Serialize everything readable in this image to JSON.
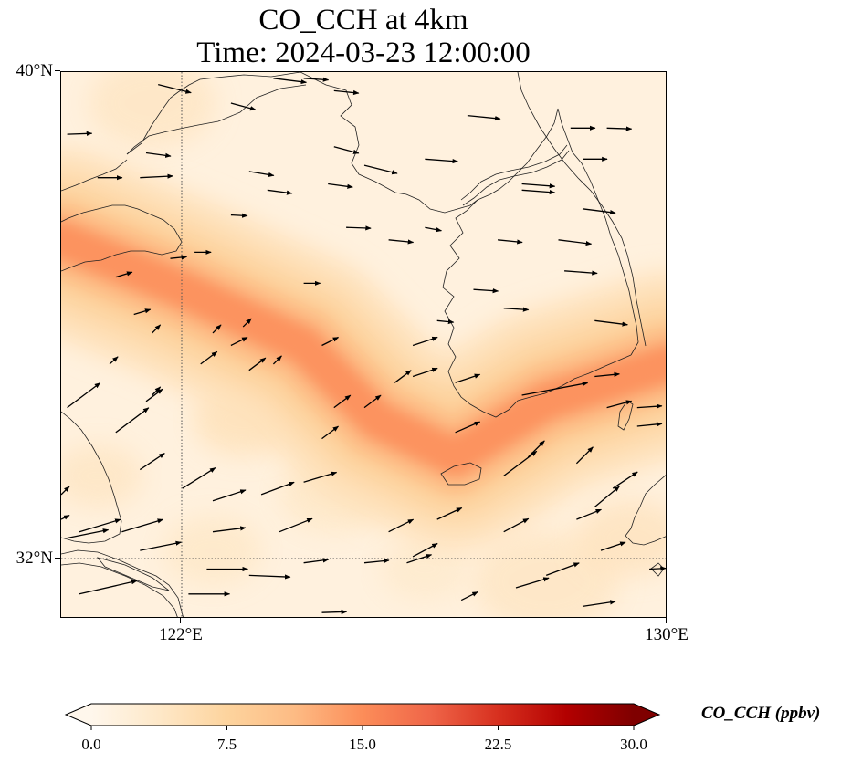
{
  "title_line1": "CO_CCH at 4km",
  "title_line2": "Time: 2024-03-23 12:00:00",
  "map": {
    "lat_range": [
      31.2,
      40.0
    ],
    "lon_range": [
      120.0,
      130.0
    ],
    "lat_ticks": [
      {
        "value": 40,
        "label": "40°N"
      },
      {
        "value": 32,
        "label": "32°N"
      }
    ],
    "lon_ticks": [
      {
        "value": 122,
        "label": "122°E"
      },
      {
        "value": 130,
        "label": "130°E"
      }
    ],
    "gridlines": [
      {
        "axis": "lon",
        "value": 122
      },
      {
        "axis": "lat",
        "value": 32
      }
    ]
  },
  "colorbar": {
    "title": "CO_CCH (ppbv)",
    "range": [
      0.0,
      30.0
    ],
    "colormap": "OrRd",
    "colors": [
      "#fff7ec",
      "#fee8c8",
      "#fdd49e",
      "#fdbb84",
      "#fc8d59",
      "#ef6548",
      "#d7301f",
      "#b30000",
      "#7f0000"
    ],
    "ticks": [
      {
        "value": 0.0,
        "label": "0.0"
      },
      {
        "value": 7.5,
        "label": "7.5"
      },
      {
        "value": 15.0,
        "label": "15.0"
      },
      {
        "value": 22.5,
        "label": "22.5"
      },
      {
        "value": 30.0,
        "label": "30.0"
      }
    ],
    "extend": "both"
  },
  "plume": {
    "peak_value": 14.5,
    "centerline": [
      [
        120.0,
        37.3
      ],
      [
        122.0,
        36.5
      ],
      [
        124.0,
        35.6
      ],
      [
        125.2,
        34.4
      ],
      [
        126.5,
        33.8
      ],
      [
        128.0,
        34.7
      ],
      [
        130.0,
        35.3
      ]
    ]
  },
  "wind_vectors": [
    {
      "lon": 120.1,
      "lat": 39.0,
      "u": 3,
      "v": 0.1
    },
    {
      "lon": 120.6,
      "lat": 38.3,
      "u": 3,
      "v": 0
    },
    {
      "lon": 121.3,
      "lat": 38.3,
      "u": 4,
      "v": 0.2
    },
    {
      "lon": 121.6,
      "lat": 39.8,
      "u": 4,
      "v": -1
    },
    {
      "lon": 121.4,
      "lat": 38.7,
      "u": 3,
      "v": -0.4
    },
    {
      "lon": 121.8,
      "lat": 37.0,
      "u": 2,
      "v": 0.2
    },
    {
      "lon": 120.9,
      "lat": 36.7,
      "u": 2,
      "v": 0.6
    },
    {
      "lon": 121.2,
      "lat": 36.1,
      "u": 2,
      "v": 0.6
    },
    {
      "lon": 120.8,
      "lat": 35.3,
      "u": 1,
      "v": 0.9
    },
    {
      "lon": 120.1,
      "lat": 34.6,
      "u": 4,
      "v": 3
    },
    {
      "lon": 121.4,
      "lat": 34.7,
      "u": 2,
      "v": 1.5
    },
    {
      "lon": 120.9,
      "lat": 34.2,
      "u": 4,
      "v": 3
    },
    {
      "lon": 121.3,
      "lat": 33.6,
      "u": 3,
      "v": 2
    },
    {
      "lon": 120.0,
      "lat": 33.2,
      "u": 1,
      "v": 1
    },
    {
      "lon": 122.0,
      "lat": 33.3,
      "u": 4,
      "v": 2.5
    },
    {
      "lon": 120.0,
      "lat": 32.8,
      "u": 1,
      "v": 0.5
    },
    {
      "lon": 120.1,
      "lat": 32.5,
      "u": 5,
      "v": 1
    },
    {
      "lon": 121.0,
      "lat": 32.6,
      "u": 5,
      "v": 1.5
    },
    {
      "lon": 120.3,
      "lat": 32.6,
      "u": 5,
      "v": 1.5
    },
    {
      "lon": 121.3,
      "lat": 32.3,
      "u": 5,
      "v": 1
    },
    {
      "lon": 120.3,
      "lat": 31.6,
      "u": 7,
      "v": 1.6
    },
    {
      "lon": 122.1,
      "lat": 31.6,
      "u": 5,
      "v": 0
    },
    {
      "lon": 122.5,
      "lat": 32.6,
      "u": 4,
      "v": 0.5
    },
    {
      "lon": 122.5,
      "lat": 33.1,
      "u": 4,
      "v": 1.3
    },
    {
      "lon": 123.3,
      "lat": 33.2,
      "u": 4,
      "v": 1.5
    },
    {
      "lon": 124.0,
      "lat": 33.4,
      "u": 4,
      "v": 1.2
    },
    {
      "lon": 123.6,
      "lat": 32.6,
      "u": 4,
      "v": 1.6
    },
    {
      "lon": 122.4,
      "lat": 32.0,
      "u": 5,
      "v": 0
    },
    {
      "lon": 123.1,
      "lat": 31.9,
      "u": 5,
      "v": -0.2
    },
    {
      "lon": 124.0,
      "lat": 32.1,
      "u": 3,
      "v": 0.4
    },
    {
      "lon": 124.3,
      "lat": 31.3,
      "u": 3,
      "v": 0.1
    },
    {
      "lon": 125.0,
      "lat": 32.1,
      "u": 3,
      "v": 0.3
    },
    {
      "lon": 125.7,
      "lat": 32.1,
      "u": 3,
      "v": 1
    },
    {
      "lon": 126.2,
      "lat": 32.8,
      "u": 3,
      "v": 1.4
    },
    {
      "lon": 125.4,
      "lat": 32.6,
      "u": 3,
      "v": 1.5
    },
    {
      "lon": 125.8,
      "lat": 32.2,
      "u": 3,
      "v": 1.6
    },
    {
      "lon": 126.6,
      "lat": 31.5,
      "u": 2,
      "v": 1
    },
    {
      "lon": 127.5,
      "lat": 31.7,
      "u": 4,
      "v": 1.2
    },
    {
      "lon": 128.0,
      "lat": 31.9,
      "u": 4,
      "v": 1.5
    },
    {
      "lon": 128.6,
      "lat": 31.4,
      "u": 4,
      "v": 0.6
    },
    {
      "lon": 129.7,
      "lat": 32.0,
      "u": 2,
      "v": 0.1
    },
    {
      "lon": 128.9,
      "lat": 32.3,
      "u": 3,
      "v": 1
    },
    {
      "lon": 127.3,
      "lat": 32.6,
      "u": 3,
      "v": 1.6
    },
    {
      "lon": 128.5,
      "lat": 32.8,
      "u": 3,
      "v": 1.2
    },
    {
      "lon": 128.8,
      "lat": 33.0,
      "u": 3,
      "v": 2.5
    },
    {
      "lon": 129.1,
      "lat": 33.3,
      "u": 3,
      "v": 2
    },
    {
      "lon": 127.3,
      "lat": 33.5,
      "u": 4,
      "v": 3
    },
    {
      "lon": 127.7,
      "lat": 33.8,
      "u": 2,
      "v": 2
    },
    {
      "lon": 128.5,
      "lat": 33.7,
      "u": 2,
      "v": 2
    },
    {
      "lon": 126.5,
      "lat": 34.2,
      "u": 3,
      "v": 1.3
    },
    {
      "lon": 125.0,
      "lat": 34.6,
      "u": 2,
      "v": 1.5
    },
    {
      "lon": 124.3,
      "lat": 34.1,
      "u": 2,
      "v": 1.5
    },
    {
      "lon": 124.5,
      "lat": 34.6,
      "u": 2,
      "v": 1.5
    },
    {
      "lon": 125.5,
      "lat": 35.0,
      "u": 2,
      "v": 1.5
    },
    {
      "lon": 123.1,
      "lat": 35.2,
      "u": 2,
      "v": 1.5
    },
    {
      "lon": 122.8,
      "lat": 35.6,
      "u": 2,
      "v": 1
    },
    {
      "lon": 123.5,
      "lat": 35.3,
      "u": 1,
      "v": 1
    },
    {
      "lon": 122.5,
      "lat": 35.8,
      "u": 1,
      "v": 1
    },
    {
      "lon": 123.0,
      "lat": 35.9,
      "u": 1,
      "v": 1
    },
    {
      "lon": 121.5,
      "lat": 35.8,
      "u": 1,
      "v": 1
    },
    {
      "lon": 122.3,
      "lat": 35.3,
      "u": 2,
      "v": 1.5
    },
    {
      "lon": 121.5,
      "lat": 34.8,
      "u": 1,
      "v": 1
    },
    {
      "lon": 124.3,
      "lat": 35.6,
      "u": 2,
      "v": 1
    },
    {
      "lon": 125.8,
      "lat": 35.6,
      "u": 3,
      "v": 1
    },
    {
      "lon": 125.8,
      "lat": 35.1,
      "u": 3,
      "v": 1
    },
    {
      "lon": 126.5,
      "lat": 35.0,
      "u": 3,
      "v": 1
    },
    {
      "lon": 127.6,
      "lat": 34.8,
      "u": 8,
      "v": 1.5
    },
    {
      "lon": 129.5,
      "lat": 34.3,
      "u": 3,
      "v": 0.3
    },
    {
      "lon": 129.0,
      "lat": 34.6,
      "u": 3,
      "v": 0.8
    },
    {
      "lon": 128.8,
      "lat": 35.1,
      "u": 3,
      "v": 0.3
    },
    {
      "lon": 129.5,
      "lat": 34.6,
      "u": 3,
      "v": 0.2
    },
    {
      "lon": 128.8,
      "lat": 36.0,
      "u": 4,
      "v": -0.5
    },
    {
      "lon": 127.3,
      "lat": 36.2,
      "u": 3,
      "v": -0.2
    },
    {
      "lon": 128.3,
      "lat": 36.8,
      "u": 4,
      "v": -0.3
    },
    {
      "lon": 128.2,
      "lat": 37.3,
      "u": 4,
      "v": -0.5
    },
    {
      "lon": 128.6,
      "lat": 37.8,
      "u": 4,
      "v": -0.5
    },
    {
      "lon": 127.6,
      "lat": 38.2,
      "u": 4,
      "v": -0.3
    },
    {
      "lon": 126.0,
      "lat": 38.6,
      "u": 4,
      "v": -0.3
    },
    {
      "lon": 126.7,
      "lat": 39.3,
      "u": 4,
      "v": -0.4
    },
    {
      "lon": 127.6,
      "lat": 38.1,
      "u": 4,
      "v": -0.3
    },
    {
      "lon": 128.4,
      "lat": 39.1,
      "u": 3,
      "v": 0
    },
    {
      "lon": 129.0,
      "lat": 39.1,
      "u": 3,
      "v": -0.1
    },
    {
      "lon": 128.6,
      "lat": 38.6,
      "u": 3,
      "v": 0
    },
    {
      "lon": 125.0,
      "lat": 38.5,
      "u": 4,
      "v": -1
    },
    {
      "lon": 125.4,
      "lat": 37.3,
      "u": 3,
      "v": -0.3
    },
    {
      "lon": 124.0,
      "lat": 36.6,
      "u": 2,
      "v": 0
    },
    {
      "lon": 124.4,
      "lat": 38.2,
      "u": 3,
      "v": -0.4
    },
    {
      "lon": 124.5,
      "lat": 38.8,
      "u": 3,
      "v": -0.8
    },
    {
      "lon": 123.1,
      "lat": 38.4,
      "u": 3,
      "v": -0.5
    },
    {
      "lon": 123.5,
      "lat": 39.9,
      "u": 4,
      "v": -0.5
    },
    {
      "lon": 124.0,
      "lat": 39.9,
      "u": 3,
      "v": -0.2
    },
    {
      "lon": 124.5,
      "lat": 39.7,
      "u": 3,
      "v": -0.3
    },
    {
      "lon": 123.4,
      "lat": 38.1,
      "u": 3,
      "v": -0.4
    },
    {
      "lon": 122.8,
      "lat": 39.5,
      "u": 3,
      "v": -0.8
    },
    {
      "lon": 122.8,
      "lat": 37.7,
      "u": 2,
      "v": -0.1
    },
    {
      "lon": 122.2,
      "lat": 37.1,
      "u": 2,
      "v": 0
    },
    {
      "lon": 124.7,
      "lat": 37.5,
      "u": 3,
      "v": -0.1
    },
    {
      "lon": 126.0,
      "lat": 37.5,
      "u": 2,
      "v": -0.4
    },
    {
      "lon": 126.2,
      "lat": 36.0,
      "u": 2,
      "v": -0.2
    },
    {
      "lon": 126.8,
      "lat": 36.5,
      "u": 3,
      "v": -0.2
    },
    {
      "lon": 127.2,
      "lat": 37.3,
      "u": 3,
      "v": -0.3
    }
  ]
}
